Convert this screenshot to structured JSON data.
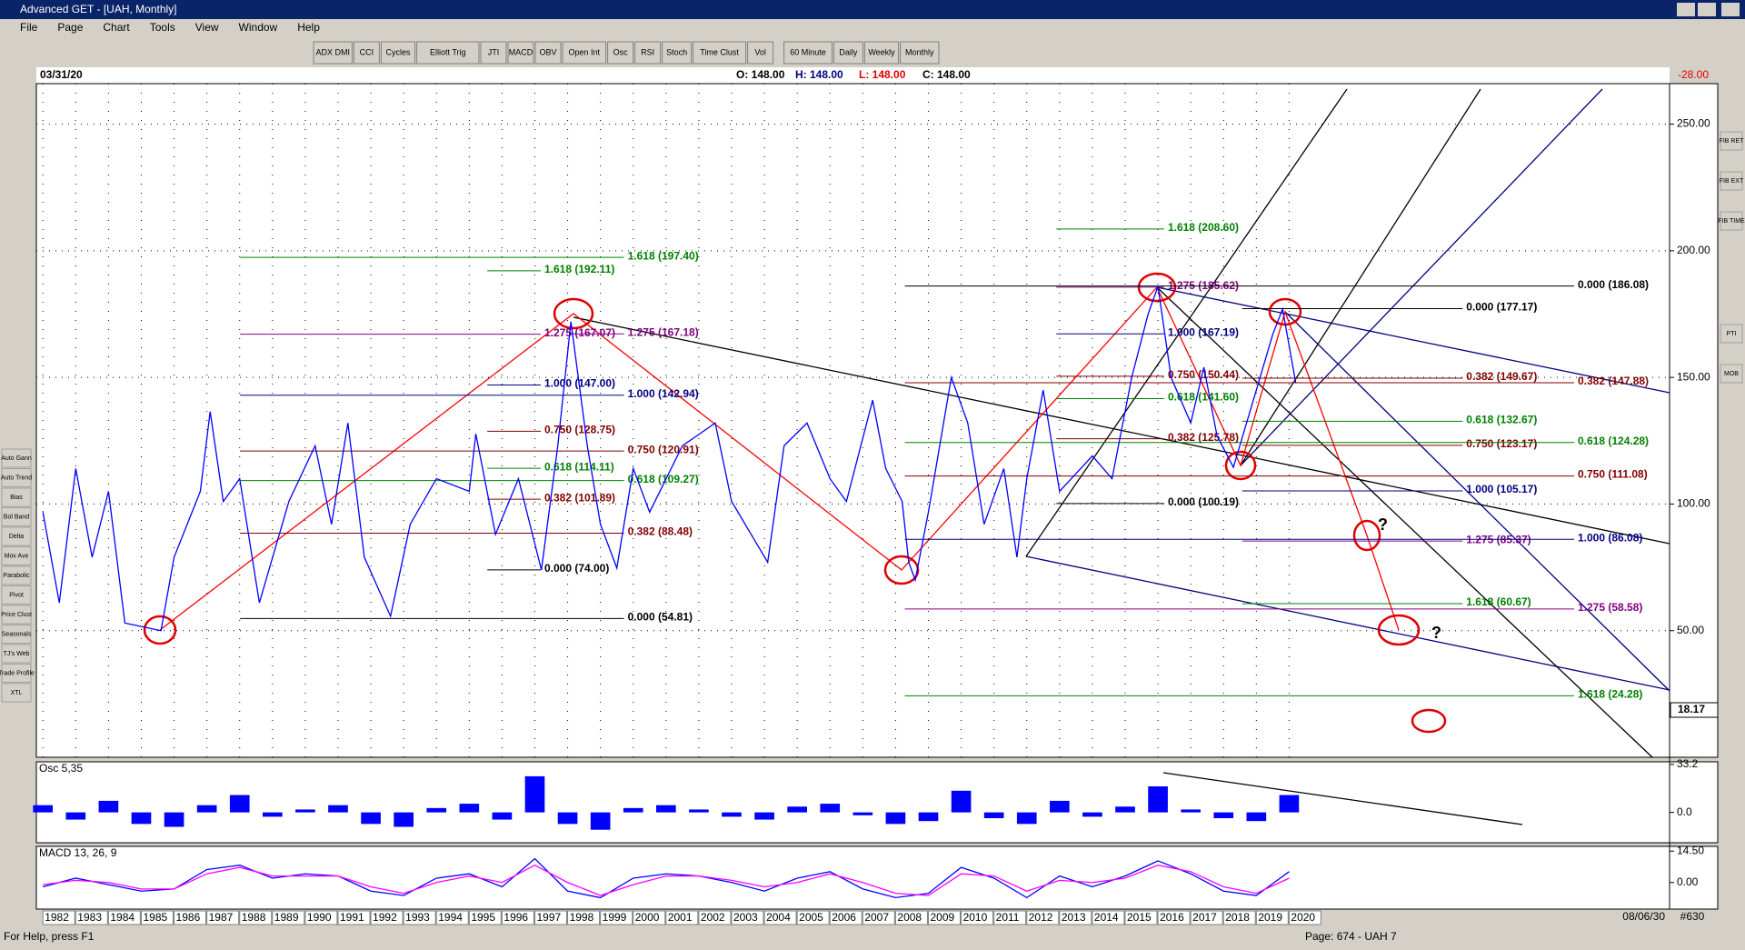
{
  "window": {
    "title": "Advanced GET - [UAH, Monthly]"
  },
  "menu": [
    "File",
    "Page",
    "Chart",
    "Tools",
    "View",
    "Window",
    "Help"
  ],
  "toolbar": [
    "ADX DMI",
    "CCI",
    "Cycles",
    "Elliott Trig",
    "JTI",
    "MACD",
    "OBV",
    "Open Int",
    "Osc",
    "RSI",
    "Stoch",
    "Time Clust",
    "Vol",
    "60 Minute",
    "Daily",
    "Weekly",
    "Monthly"
  ],
  "left_toolbar": [
    "Auto Gann",
    "Auto Trend",
    "Bias",
    "Bol Band",
    "Delta",
    "Mov Ave",
    "Parabolic",
    "Pivot",
    "Price Clust",
    "Seasonals",
    "TJ's Web",
    "Trade Profile",
    "XTL"
  ],
  "right_toolbar": [
    "FIB RET",
    "FIB EXT",
    "FIB TIME",
    "PTI",
    "MOB"
  ],
  "status": {
    "help": "For Help, press F1",
    "page": "Page: 674 - UAH 7",
    "date": "08/06/30",
    "code": "#630"
  },
  "chart_data": [
    {
      "type": "line",
      "date": "03/31/20",
      "open": "O: 148.00",
      "high": "H: 148.00",
      "low": "L: 148.00",
      "close": "C: 148.00",
      "change": "-28.00",
      "cursor_label": "18.17",
      "xlim": [
        1981.8,
        2031.6
      ],
      "xticks": [
        1982,
        1983,
        1984,
        1985,
        1986,
        1987,
        1988,
        1989,
        1990,
        1991,
        1992,
        1993,
        1994,
        1995,
        1996,
        1997,
        1998,
        1999,
        2000,
        2001,
        2002,
        2003,
        2004,
        2005,
        2006,
        2007,
        2008,
        2009,
        2010,
        2011,
        2012,
        2013,
        2014,
        2015,
        2016,
        2017,
        2018,
        2019,
        2020
      ],
      "ylim": [
        0,
        266
      ],
      "yticks": [
        {
          "value": 50,
          "label": "50.00"
        },
        {
          "value": 100,
          "label": "100.00"
        },
        {
          "value": 150,
          "label": "150.00"
        },
        {
          "value": 200,
          "label": "200.00"
        },
        {
          "value": 250,
          "label": "250.00"
        }
      ],
      "grid": true,
      "x": [
        1982.0,
        1982.5,
        1983.0,
        1983.5,
        1984.0,
        1984.5,
        1985.6,
        1986.0,
        1986.8,
        1987.1,
        1987.5,
        1988.0,
        1988.6,
        1989.5,
        1990.3,
        1990.8,
        1991.3,
        1991.8,
        1992.6,
        1993.2,
        1994.0,
        1995.0,
        1995.2,
        1995.8,
        1996.5,
        1997.2,
        1997.7,
        1998.1,
        1998.6,
        1999.0,
        1999.5,
        2000.0,
        2000.5,
        2001.5,
        2002.5,
        2003.0,
        2004.1,
        2004.6,
        2005.3,
        2006.0,
        2006.5,
        2007.3,
        2007.7,
        2008.2,
        2008.4,
        2008.6,
        2009.0,
        2009.7,
        2010.2,
        2010.7,
        2011.3,
        2011.7,
        2012.0,
        2012.5,
        2013.0,
        2014.0,
        2014.6,
        2015.2,
        2015.7,
        2016.0,
        2016.4,
        2017.0,
        2017.4,
        2017.8,
        2018.3,
        2019.0,
        2019.5,
        2019.8,
        2020.2
      ],
      "series": [
        {
          "color": "#0000ff",
          "values": [
            96.8,
            61,
            114,
            79,
            105,
            53,
            50,
            79,
            105,
            136.5,
            101,
            110,
            61,
            101,
            123,
            92,
            132,
            79,
            55.7,
            92,
            110,
            105,
            127.7,
            88,
            110,
            74,
            123,
            172,
            123,
            92,
            74.7,
            114,
            96.8,
            123,
            132,
            101,
            77,
            123,
            132,
            110,
            101,
            141,
            114,
            101,
            77,
            70,
            96.8,
            150,
            132,
            92,
            114,
            79,
            110,
            145,
            105,
            119,
            110,
            150,
            175,
            186,
            150,
            132,
            154,
            127,
            114.5,
            145,
            167,
            177,
            148
          ]
        }
      ],
      "annotations": [
        {
          "label": "1.618 (197.40)",
          "value": 197.4,
          "x": [
            1988.01,
            1999.72
          ],
          "color": "#008000"
        },
        {
          "label": "1.618 (192.11)",
          "value": 192.11,
          "x": [
            1995.55,
            1997.18
          ],
          "color": "#008000"
        },
        {
          "label": "1.275 (167.07)",
          "value": 167.07,
          "x": [
            1988.01,
            1997.18
          ],
          "color": "#800080"
        },
        {
          "label": "1.275 (167.18)",
          "value": 167.18,
          "x": [
            1998.1,
            1999.72
          ],
          "color": "#800080"
        },
        {
          "label": "1.000 (147.00)",
          "value": 147,
          "x": [
            1995.55,
            1997.18
          ],
          "color": "#000080"
        },
        {
          "label": "1.000 (142.94)",
          "value": 142.94,
          "x": [
            1988.01,
            1999.72
          ],
          "color": "#000080"
        },
        {
          "label": "0.750 (128.75)",
          "value": 128.75,
          "x": [
            1995.55,
            1997.18
          ],
          "color": "#800000"
        },
        {
          "label": "0.750 (120.91)",
          "value": 120.91,
          "x": [
            1988.01,
            1999.72
          ],
          "color": "#800000"
        },
        {
          "label": "0.618 (114.11)",
          "value": 114.11,
          "x": [
            1995.55,
            1997.18
          ],
          "color": "#008000"
        },
        {
          "label": "0.618 (109.27)",
          "value": 109.27,
          "x": [
            1988.01,
            1999.72
          ],
          "color": "#008000"
        },
        {
          "label": "0.382 (101.89)",
          "value": 101.89,
          "x": [
            1995.55,
            1997.18
          ],
          "color": "#800000"
        },
        {
          "label": "0.382 (88.48)",
          "value": 88.48,
          "x": [
            1988.01,
            1999.72
          ],
          "color": "#800000"
        },
        {
          "label": "0.000 (74.00)",
          "value": 74,
          "x": [
            1995.55,
            1997.18
          ],
          "color": "#000000"
        },
        {
          "label": "0.000 (54.81)",
          "value": 54.81,
          "x": [
            1988.01,
            1999.72
          ],
          "color": "#000000"
        },
        {
          "label": "1.618 (208.60)",
          "value": 208.6,
          "x": [
            2012.9,
            2016.19
          ],
          "color": "#008000"
        },
        {
          "label": "1.275 (185.62)",
          "value": 185.62,
          "x": [
            2012.9,
            2016.19
          ],
          "color": "#800080"
        },
        {
          "label": "1.000 (167.19)",
          "value": 167.19,
          "x": [
            2012.9,
            2016.19
          ],
          "color": "#000080"
        },
        {
          "label": "0.750 (150.44)",
          "value": 150.44,
          "x": [
            2012.9,
            2016.19
          ],
          "color": "#800000"
        },
        {
          "label": "0.618 (141.60)",
          "value": 141.6,
          "x": [
            2012.9,
            2016.19
          ],
          "color": "#008000"
        },
        {
          "label": "0.382 (125.78)",
          "value": 125.78,
          "x": [
            2012.9,
            2016.19
          ],
          "color": "#800000"
        },
        {
          "label": "0.000 (100.19)",
          "value": 100.19,
          "x": [
            2012.9,
            2016.19
          ],
          "color": "#000000"
        },
        {
          "label": "0.000 (177.17)",
          "value": 177.17,
          "x": [
            2018.57,
            2025.29
          ],
          "color": "#000000"
        },
        {
          "label": "0.382 (149.67)",
          "value": 149.67,
          "x": [
            2018.57,
            2025.29
          ],
          "color": "#800000"
        },
        {
          "label": "0.618 (132.67)",
          "value": 132.67,
          "x": [
            2018.57,
            2025.29
          ],
          "color": "#008000"
        },
        {
          "label": "0.750 (123.17)",
          "value": 123.17,
          "x": [
            2018.57,
            2025.29
          ],
          "color": "#800000"
        },
        {
          "label": "1.000 (105.17)",
          "value": 105.17,
          "x": [
            2018.57,
            2025.29
          ],
          "color": "#000080"
        },
        {
          "label": "1.275 (85.37)",
          "value": 85.37,
          "x": [
            2018.57,
            2025.29
          ],
          "color": "#800080"
        },
        {
          "label": "1.618 (60.67)",
          "value": 60.67,
          "x": [
            2018.57,
            2025.29
          ],
          "color": "#008000"
        },
        {
          "label": "0.000 (186.08)",
          "value": 186.08,
          "x": [
            2008.28,
            2028.69
          ],
          "color": "#000000"
        },
        {
          "label": "0.382 (147.88)",
          "value": 147.88,
          "x": [
            2008.28,
            2028.69
          ],
          "color": "#800000"
        },
        {
          "label": "0.618 (124.28)",
          "value": 124.28,
          "x": [
            2008.28,
            2028.69
          ],
          "color": "#008000"
        },
        {
          "label": "0.750 (111.08)",
          "value": 111.08,
          "x": [
            2008.28,
            2028.69
          ],
          "color": "#800000"
        },
        {
          "label": "1.000 (86.08)",
          "value": 86.08,
          "x": [
            2008.28,
            2028.69
          ],
          "color": "#000080"
        },
        {
          "label": "1.275 (58.58)",
          "value": 58.58,
          "x": [
            2008.28,
            2028.69
          ],
          "color": "#800080"
        },
        {
          "label": "1.618 (24.28)",
          "value": 24.28,
          "x": [
            2008.28,
            2028.69
          ],
          "color": "#008000"
        }
      ],
      "marks": [
        "?",
        "?"
      ]
    },
    {
      "type": "bar",
      "title": "Osc 5,35",
      "color": "#0000ff",
      "xlim": [
        1981.8,
        2031.6
      ],
      "ylim": [
        -21,
        35
      ],
      "yticks": [
        {
          "value": 0,
          "label": "0.0"
        },
        {
          "value": 33.2,
          "label": "33.2"
        }
      ],
      "x": [
        1982,
        1983,
        1984,
        1985,
        1986,
        1987,
        1988,
        1989,
        1990,
        1991,
        1992,
        1993,
        1994,
        1995,
        1996,
        1997,
        1998,
        1999,
        2000,
        2001,
        2002,
        2003,
        2004,
        2005,
        2006,
        2007,
        2008,
        2009,
        2010,
        2011,
        2012,
        2013,
        2014,
        2015,
        2016,
        2017,
        2018,
        2019,
        2020
      ],
      "values": [
        5,
        -5,
        8,
        -8,
        -10,
        5,
        12,
        -3,
        2,
        5,
        -8,
        -10,
        3,
        6,
        -5,
        25,
        -8,
        -12,
        3,
        5,
        2,
        -3,
        -5,
        4,
        6,
        -2,
        -8,
        -6,
        15,
        -4,
        -8,
        8,
        -3,
        4,
        18,
        2,
        -4,
        -6,
        12
      ]
    },
    {
      "type": "line",
      "title": "MACD 13, 26, 9",
      "xlim": [
        1981.8,
        2031.6
      ],
      "ylim": [
        -12.3,
        16.7
      ],
      "yticks": [
        {
          "value": 14.5,
          "label": "14.50"
        },
        {
          "value": 0,
          "label": "0.00"
        }
      ],
      "x": [
        1982,
        1983,
        1984,
        1985,
        1986,
        1987,
        1988,
        1989,
        1990,
        1991,
        1992,
        1993,
        1994,
        1995,
        1996,
        1997,
        1998,
        1999,
        2000,
        2001,
        2002,
        2003,
        2004,
        2005,
        2006,
        2007,
        2008,
        2009,
        2010,
        2011,
        2012,
        2013,
        2014,
        2015,
        2016,
        2017,
        2018,
        2019,
        2020
      ],
      "series": [
        {
          "color": "#0000ff",
          "values": [
            -2,
            2,
            -1,
            -4,
            -3,
            6,
            8,
            2,
            4,
            3,
            -4,
            -6,
            2,
            4,
            -2,
            11,
            -4,
            -7,
            2,
            4,
            3,
            0,
            -4,
            2,
            5,
            -3,
            -7,
            -5,
            7,
            2,
            -7,
            3,
            -2,
            3,
            10,
            4,
            -4,
            -6,
            5
          ]
        },
        {
          "color": "#ff00ff",
          "values": [
            -1,
            1,
            0,
            -3,
            -3,
            4,
            7,
            3,
            3,
            3,
            -2,
            -5,
            0,
            3,
            0,
            8,
            0,
            -6,
            -1,
            3,
            3,
            1,
            -2,
            0,
            4,
            0,
            -5,
            -6,
            4,
            3,
            -4,
            1,
            0,
            2,
            8,
            5,
            -2,
            -5,
            2
          ]
        }
      ]
    }
  ]
}
